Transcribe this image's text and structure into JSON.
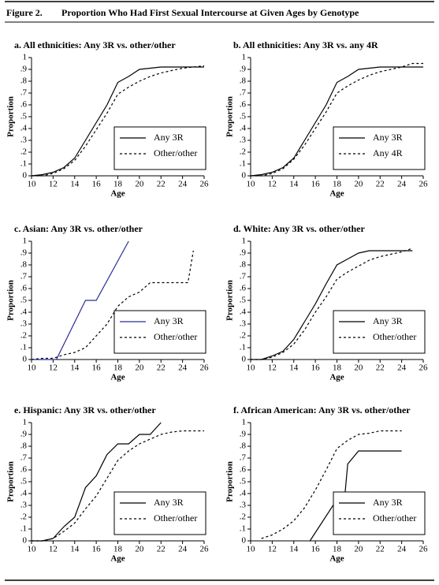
{
  "figure": {
    "label": "Figure 2.",
    "title": "Proportion Who Had First Sexual Intercourse at Given Ages by Genotype"
  },
  "chart_data": [
    {
      "type": "line",
      "title": "a. All ethnicities: Any 3R vs. other/other",
      "xlabel": "Age",
      "ylabel": "Proportion",
      "xlim": [
        10,
        26
      ],
      "xticks": [
        10,
        12,
        14,
        16,
        18,
        20,
        22,
        24,
        26
      ],
      "ylim": [
        0,
        1
      ],
      "yticks": [
        0,
        {
          "value": 0.1,
          "label": ".1"
        },
        {
          "value": 0.2,
          "label": ".2"
        },
        {
          "value": 0.3,
          "label": ".3"
        },
        {
          "value": 0.4,
          "label": ".4"
        },
        {
          "value": 0.5,
          "label": ".5"
        },
        {
          "value": 0.6,
          "label": ".6"
        },
        {
          "value": 0.7,
          "label": ".7"
        },
        {
          "value": 0.8,
          "label": ".8"
        },
        {
          "value": 0.9,
          "label": ".9"
        },
        1
      ],
      "legend": "lower right",
      "series": [
        {
          "name": "Any 3R",
          "color": "#000000",
          "style": "solid",
          "x": [
            10,
            11,
            12,
            13,
            14,
            15,
            16,
            17,
            18,
            19,
            20,
            21,
            22,
            23,
            24,
            25,
            26
          ],
          "values": [
            0,
            0.01,
            0.03,
            0.07,
            0.15,
            0.3,
            0.45,
            0.6,
            0.79,
            0.84,
            0.9,
            0.91,
            0.92,
            0.92,
            0.92,
            0.92,
            0.92
          ]
        },
        {
          "name": "Other/other",
          "color": "#000000",
          "style": "dashed",
          "x": [
            10,
            11,
            12,
            13,
            14,
            15,
            16,
            17,
            18,
            19,
            20,
            21,
            22,
            23,
            24,
            25,
            26
          ],
          "values": [
            0,
            0,
            0.02,
            0.06,
            0.13,
            0.25,
            0.39,
            0.53,
            0.69,
            0.75,
            0.8,
            0.84,
            0.87,
            0.89,
            0.91,
            0.92,
            0.93
          ]
        }
      ]
    },
    {
      "type": "line",
      "title": "b. All ethnicities: Any 3R vs. any 4R",
      "xlabel": "Age",
      "ylabel": "Proportion",
      "xlim": [
        10,
        26
      ],
      "xticks": [
        10,
        12,
        14,
        16,
        18,
        20,
        22,
        24,
        26
      ],
      "ylim": [
        0,
        1
      ],
      "yticks": [
        0,
        {
          "value": 0.1,
          "label": ".1"
        },
        {
          "value": 0.2,
          "label": ".2"
        },
        {
          "value": 0.3,
          "label": ".3"
        },
        {
          "value": 0.4,
          "label": ".4"
        },
        {
          "value": 0.5,
          "label": ".5"
        },
        {
          "value": 0.6,
          "label": ".6"
        },
        {
          "value": 0.7,
          "label": ".7"
        },
        {
          "value": 0.8,
          "label": ".8"
        },
        {
          "value": 0.9,
          "label": ".9"
        },
        1
      ],
      "legend": "lower right",
      "series": [
        {
          "name": "Any 3R",
          "color": "#000000",
          "style": "solid",
          "x": [
            10,
            11,
            12,
            13,
            14,
            15,
            16,
            17,
            18,
            19,
            20,
            21,
            22,
            23,
            24,
            25,
            26
          ],
          "values": [
            0,
            0.01,
            0.03,
            0.07,
            0.15,
            0.3,
            0.45,
            0.6,
            0.79,
            0.84,
            0.9,
            0.91,
            0.92,
            0.92,
            0.92,
            0.92,
            0.92
          ]
        },
        {
          "name": "Any 4R",
          "color": "#000000",
          "style": "dashed",
          "x": [
            10,
            11,
            12,
            13,
            14,
            15,
            16,
            17,
            18,
            19,
            20,
            21,
            22,
            23,
            24,
            25,
            26
          ],
          "values": [
            0,
            0,
            0.02,
            0.06,
            0.14,
            0.26,
            0.4,
            0.54,
            0.7,
            0.76,
            0.81,
            0.85,
            0.88,
            0.9,
            0.92,
            0.95,
            0.95
          ]
        }
      ]
    },
    {
      "type": "line",
      "title": "c. Asian: Any 3R vs. other/other",
      "xlabel": "Age",
      "ylabel": "Proportion",
      "xlim": [
        10,
        26
      ],
      "xticks": [
        10,
        12,
        14,
        16,
        18,
        20,
        22,
        24,
        26
      ],
      "ylim": [
        0,
        1
      ],
      "yticks": [
        0,
        {
          "value": 0.1,
          "label": ".1"
        },
        {
          "value": 0.2,
          "label": ".2"
        },
        {
          "value": 0.3,
          "label": ".3"
        },
        {
          "value": 0.4,
          "label": ".4"
        },
        {
          "value": 0.5,
          "label": ".5"
        },
        {
          "value": 0.6,
          "label": ".6"
        },
        {
          "value": 0.7,
          "label": ".7"
        },
        {
          "value": 0.8,
          "label": ".8"
        },
        {
          "value": 0.9,
          "label": ".9"
        },
        1
      ],
      "legend": "lower right",
      "series": [
        {
          "name": "Any 3R",
          "color": "#2b2b9a",
          "style": "solid",
          "x": [
            10,
            12.3,
            15,
            16,
            19
          ],
          "values": [
            0,
            0,
            0.5,
            0.5,
            1
          ]
        },
        {
          "name": "Other/other",
          "color": "#000000",
          "style": "dashed",
          "x": [
            10,
            11,
            12,
            13,
            14,
            15,
            16,
            17,
            18,
            19,
            20,
            21,
            22,
            23,
            24,
            24.5,
            25
          ],
          "values": [
            0,
            0.01,
            0.01,
            0.04,
            0.06,
            0.1,
            0.2,
            0.3,
            0.45,
            0.53,
            0.57,
            0.65,
            0.65,
            0.65,
            0.65,
            0.65,
            0.92
          ]
        }
      ]
    },
    {
      "type": "line",
      "title": "d. White: Any 3R vs. other/other",
      "xlabel": "Age",
      "ylabel": "Proportion",
      "xlim": [
        10,
        26
      ],
      "xticks": [
        10,
        12,
        14,
        16,
        18,
        20,
        22,
        24,
        26
      ],
      "ylim": [
        0,
        1
      ],
      "yticks": [
        0,
        {
          "value": 0.1,
          "label": ".1"
        },
        {
          "value": 0.2,
          "label": ".2"
        },
        {
          "value": 0.3,
          "label": ".3"
        },
        {
          "value": 0.4,
          "label": ".4"
        },
        {
          "value": 0.5,
          "label": ".5"
        },
        {
          "value": 0.6,
          "label": ".6"
        },
        {
          "value": 0.7,
          "label": ".7"
        },
        {
          "value": 0.8,
          "label": ".8"
        },
        {
          "value": 0.9,
          "label": ".9"
        },
        1
      ],
      "legend": "lower right",
      "series": [
        {
          "name": "Any 3R",
          "color": "#000000",
          "style": "solid",
          "x": [
            10,
            11,
            12,
            13,
            14,
            15,
            16,
            17,
            18,
            19,
            20,
            21,
            22,
            23,
            24,
            25
          ],
          "values": [
            0,
            0,
            0.03,
            0.07,
            0.17,
            0.32,
            0.47,
            0.64,
            0.8,
            0.85,
            0.9,
            0.92,
            0.92,
            0.92,
            0.92,
            0.92
          ]
        },
        {
          "name": "Other/other",
          "color": "#000000",
          "style": "dashed",
          "x": [
            10,
            11,
            12,
            13,
            14,
            15,
            16,
            17,
            18,
            19,
            20,
            21,
            22,
            23,
            24,
            25
          ],
          "values": [
            0,
            0,
            0.02,
            0.06,
            0.13,
            0.25,
            0.4,
            0.53,
            0.68,
            0.74,
            0.79,
            0.84,
            0.87,
            0.89,
            0.91,
            0.94
          ]
        }
      ]
    },
    {
      "type": "line",
      "title": "e. Hispanic: Any 3R vs. other/other",
      "xlabel": "Age",
      "ylabel": "Proportion",
      "xlim": [
        10,
        26
      ],
      "xticks": [
        10,
        12,
        14,
        16,
        18,
        20,
        22,
        24,
        26
      ],
      "ylim": [
        0,
        1
      ],
      "yticks": [
        0,
        {
          "value": 0.1,
          "label": ".1"
        },
        {
          "value": 0.2,
          "label": ".2"
        },
        {
          "value": 0.3,
          "label": ".3"
        },
        {
          "value": 0.4,
          "label": ".4"
        },
        {
          "value": 0.5,
          "label": ".5"
        },
        {
          "value": 0.6,
          "label": ".6"
        },
        {
          "value": 0.7,
          "label": ".7"
        },
        {
          "value": 0.8,
          "label": ".8"
        },
        {
          "value": 0.9,
          "label": ".9"
        },
        1
      ],
      "legend": "lower right",
      "series": [
        {
          "name": "Any 3R",
          "color": "#000000",
          "style": "solid",
          "x": [
            10,
            11,
            12,
            13,
            14,
            15,
            16,
            17,
            18,
            19,
            20,
            21,
            22
          ],
          "values": [
            0,
            0,
            0.02,
            0.12,
            0.2,
            0.45,
            0.55,
            0.73,
            0.82,
            0.82,
            0.9,
            0.9,
            1
          ]
        },
        {
          "name": "Other/other",
          "color": "#000000",
          "style": "dashed",
          "x": [
            10,
            11,
            12,
            13,
            14,
            15,
            16,
            17,
            18,
            19,
            20,
            21,
            22,
            23,
            24,
            25,
            26
          ],
          "values": [
            0,
            0,
            0.02,
            0.08,
            0.15,
            0.27,
            0.38,
            0.53,
            0.68,
            0.76,
            0.82,
            0.86,
            0.9,
            0.92,
            0.93,
            0.93,
            0.93
          ]
        }
      ]
    },
    {
      "type": "line",
      "title": "f. African American: Any 3R vs. other/other",
      "xlabel": "Age",
      "ylabel": "Proportion",
      "xlim": [
        10,
        26
      ],
      "xticks": [
        10,
        12,
        14,
        16,
        18,
        20,
        22,
        24,
        26
      ],
      "ylim": [
        0,
        1
      ],
      "yticks": [
        0,
        {
          "value": 0.1,
          "label": ".1"
        },
        {
          "value": 0.2,
          "label": ".2"
        },
        {
          "value": 0.3,
          "label": ".3"
        },
        {
          "value": 0.4,
          "label": ".4"
        },
        {
          "value": 0.5,
          "label": ".5"
        },
        {
          "value": 0.6,
          "label": ".6"
        },
        {
          "value": 0.7,
          "label": ".7"
        },
        {
          "value": 0.8,
          "label": ".8"
        },
        {
          "value": 0.9,
          "label": ".9"
        },
        1
      ],
      "legend": "lower right",
      "series": [
        {
          "name": "Any 3R",
          "color": "#000000",
          "style": "solid",
          "x": [
            15.5,
            18,
            18.7,
            19,
            20,
            24
          ],
          "values": [
            0,
            0.35,
            0.35,
            0.65,
            0.76,
            0.76
          ]
        },
        {
          "name": "Other/other",
          "color": "#000000",
          "style": "dashed",
          "x": [
            11,
            12,
            13,
            14,
            15,
            16,
            17,
            18,
            19,
            20,
            21,
            22,
            23,
            24
          ],
          "values": [
            0.02,
            0.05,
            0.1,
            0.17,
            0.28,
            0.43,
            0.6,
            0.78,
            0.85,
            0.9,
            0.91,
            0.93,
            0.93,
            0.93
          ]
        }
      ]
    }
  ]
}
